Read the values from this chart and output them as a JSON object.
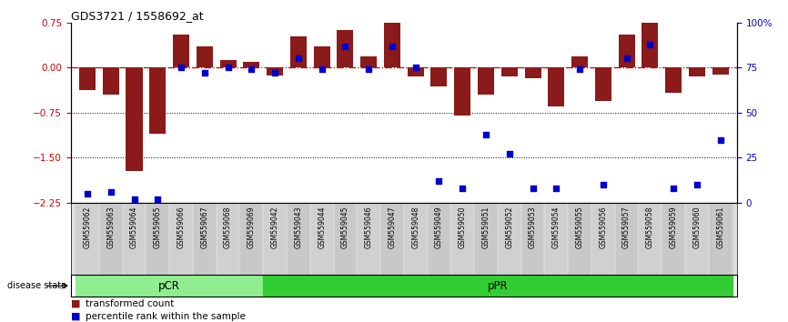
{
  "title": "GDS3721 / 1558692_at",
  "samples": [
    "GSM559062",
    "GSM559063",
    "GSM559064",
    "GSM559065",
    "GSM559066",
    "GSM559067",
    "GSM559068",
    "GSM559069",
    "GSM559042",
    "GSM559043",
    "GSM559044",
    "GSM559045",
    "GSM559046",
    "GSM559047",
    "GSM559048",
    "GSM559049",
    "GSM559050",
    "GSM559051",
    "GSM559052",
    "GSM559053",
    "GSM559054",
    "GSM559055",
    "GSM559056",
    "GSM559057",
    "GSM559058",
    "GSM559059",
    "GSM559060",
    "GSM559061"
  ],
  "red_bars": [
    -0.38,
    -0.45,
    -1.72,
    -1.1,
    0.55,
    0.35,
    0.12,
    0.1,
    -0.13,
    0.52,
    0.35,
    0.62,
    0.18,
    0.75,
    -0.15,
    -0.32,
    -0.8,
    -0.45,
    -0.15,
    -0.18,
    -0.65,
    0.18,
    -0.55,
    0.55,
    0.78,
    -0.42,
    -0.15,
    -0.12
  ],
  "blue_dots": [
    5,
    6,
    2,
    2,
    75,
    72,
    75,
    74,
    72,
    80,
    74,
    87,
    74,
    87,
    75,
    12,
    8,
    38,
    27,
    8,
    8,
    74,
    10,
    80,
    88,
    8,
    10,
    35
  ],
  "pCR_count": 8,
  "pPR_count": 20,
  "ylim_left": [
    -2.25,
    0.75
  ],
  "ylim_right": [
    0,
    100
  ],
  "yticks_left": [
    0.75,
    0,
    -0.75,
    -1.5,
    -2.25
  ],
  "yticks_right": [
    100,
    75,
    50,
    25,
    0
  ],
  "bar_color": "#8B1A1A",
  "dot_color": "#0000CD",
  "zero_line_color": "#CC0000",
  "dotted_line_color": "#000000",
  "pCR_color": "#90EE90",
  "pPR_color": "#32CD32",
  "label_bar": "transformed count",
  "label_dot": "percentile rank within the sample",
  "disease_state_label": "disease state",
  "pCR_label": "pCR",
  "pPR_label": "pPR",
  "bg_color": "#FFFFFF",
  "axis_bg_color": "#FFFFFF"
}
